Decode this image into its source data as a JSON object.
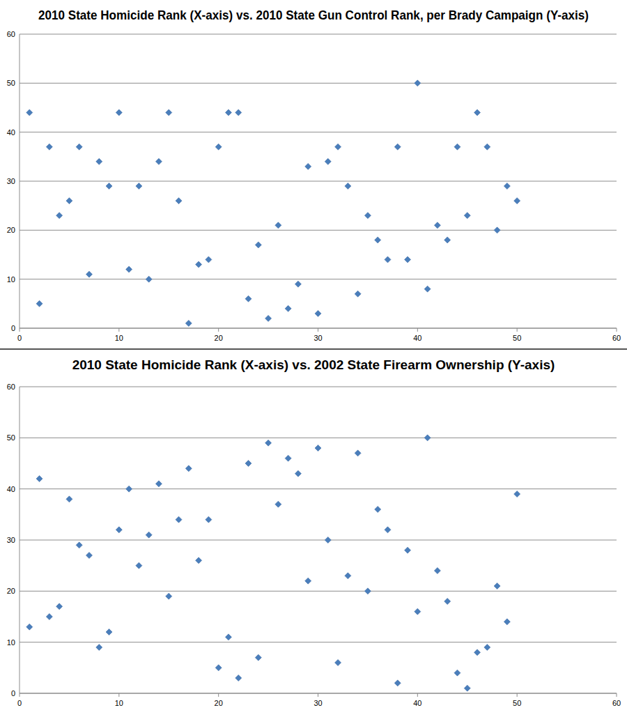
{
  "chart_data": [
    {
      "type": "scatter",
      "title": "2010 State Homicide Rank (X-axis) vs. 2010 State Gun Control Rank, per Brady Campaign (Y-axis)",
      "x": [
        1,
        2,
        3,
        4,
        5,
        6,
        7,
        8,
        9,
        10,
        11,
        12,
        13,
        14,
        15,
        16,
        17,
        18,
        19,
        20,
        21,
        22,
        23,
        24,
        25,
        26,
        27,
        28,
        29,
        30,
        31,
        32,
        33,
        34,
        35,
        36,
        37,
        38,
        39,
        40,
        41,
        42,
        43,
        44,
        45,
        46,
        47,
        48,
        49,
        50
      ],
      "values": [
        44,
        5,
        37,
        23,
        26,
        37,
        11,
        34,
        29,
        44,
        12,
        29,
        10,
        34,
        44,
        26,
        1,
        13,
        14,
        37,
        44,
        44,
        6,
        17,
        2,
        21,
        4,
        9,
        33,
        3,
        34,
        37,
        29,
        7,
        23,
        18,
        14,
        37,
        14,
        50,
        8,
        21,
        18,
        37,
        23,
        44,
        37,
        20,
        29,
        26
      ],
      "color": "#4a7ebb",
      "marker": "diamond",
      "xlim": [
        0,
        60
      ],
      "ylim": [
        0,
        60
      ],
      "xticks": [
        0,
        10,
        20,
        30,
        40,
        50,
        60
      ],
      "yticks": [
        0,
        10,
        20,
        30,
        40,
        50,
        60
      ],
      "grid": true
    },
    {
      "type": "scatter",
      "title": "2010 State Homicide Rank (X-axis) vs. 2002 State Firearm Ownership (Y-axis)",
      "x": [
        1,
        2,
        3,
        4,
        5,
        6,
        7,
        8,
        9,
        10,
        11,
        12,
        13,
        14,
        15,
        16,
        17,
        18,
        19,
        20,
        21,
        22,
        23,
        24,
        25,
        26,
        27,
        28,
        29,
        30,
        31,
        32,
        33,
        34,
        35,
        36,
        37,
        38,
        39,
        40,
        41,
        42,
        43,
        44,
        45,
        46,
        47,
        48,
        49,
        50
      ],
      "values": [
        13,
        42,
        15,
        17,
        38,
        29,
        27,
        9,
        12,
        32,
        40,
        25,
        31,
        41,
        19,
        34,
        44,
        26,
        34,
        5,
        11,
        3,
        45,
        7,
        49,
        37,
        46,
        43,
        22,
        48,
        30,
        6,
        23,
        47,
        20,
        36,
        32,
        2,
        28,
        16,
        50,
        24,
        18,
        4,
        1,
        8,
        9,
        21,
        14,
        39
      ],
      "color": "#4a7ebb",
      "marker": "diamond",
      "xlim": [
        0,
        60
      ],
      "ylim": [
        0,
        60
      ],
      "xticks": [
        0,
        10,
        20,
        30,
        40,
        50,
        60
      ],
      "yticks": [
        0,
        10,
        20,
        30,
        40,
        50,
        60
      ],
      "grid": true
    }
  ]
}
